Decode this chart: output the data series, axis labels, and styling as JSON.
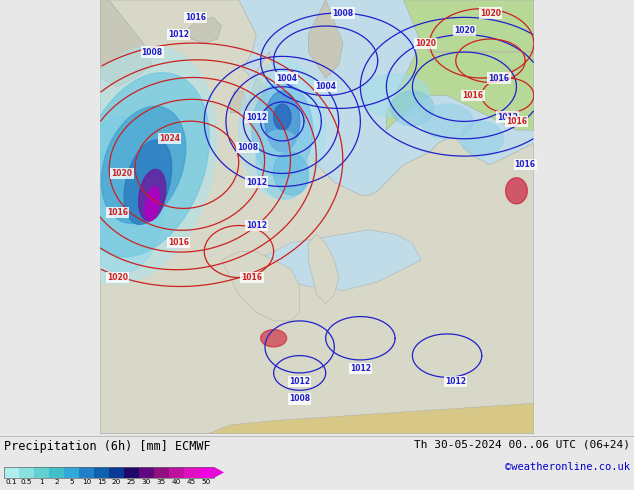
{
  "title_left": "Precipitation (6h) [mm] ECMWF",
  "title_right": "Th 30-05-2024 00..06 UTC (06+24)",
  "credit": "©weatheronline.co.uk",
  "colorbar_values": [
    0.1,
    0.5,
    1,
    2,
    5,
    10,
    15,
    20,
    25,
    30,
    35,
    40,
    45,
    50
  ],
  "colorbar_colors": [
    "#b0eeee",
    "#88e0e0",
    "#60d0d0",
    "#40c0c8",
    "#30a8d8",
    "#2080c8",
    "#1060b0",
    "#083898",
    "#200868",
    "#600880",
    "#901080",
    "#c010a0",
    "#e010c0",
    "#f000e0"
  ],
  "ocean_color": "#c0dce8",
  "land_color": "#d8d8c8",
  "land_green_color": "#b8d898",
  "land_gray_color": "#c8c8b8",
  "bottom_bg": "#e8e8e8",
  "blue_contour": "#2020cc",
  "red_contour": "#cc2020",
  "figwidth": 6.34,
  "figheight": 4.9,
  "dpi": 100
}
